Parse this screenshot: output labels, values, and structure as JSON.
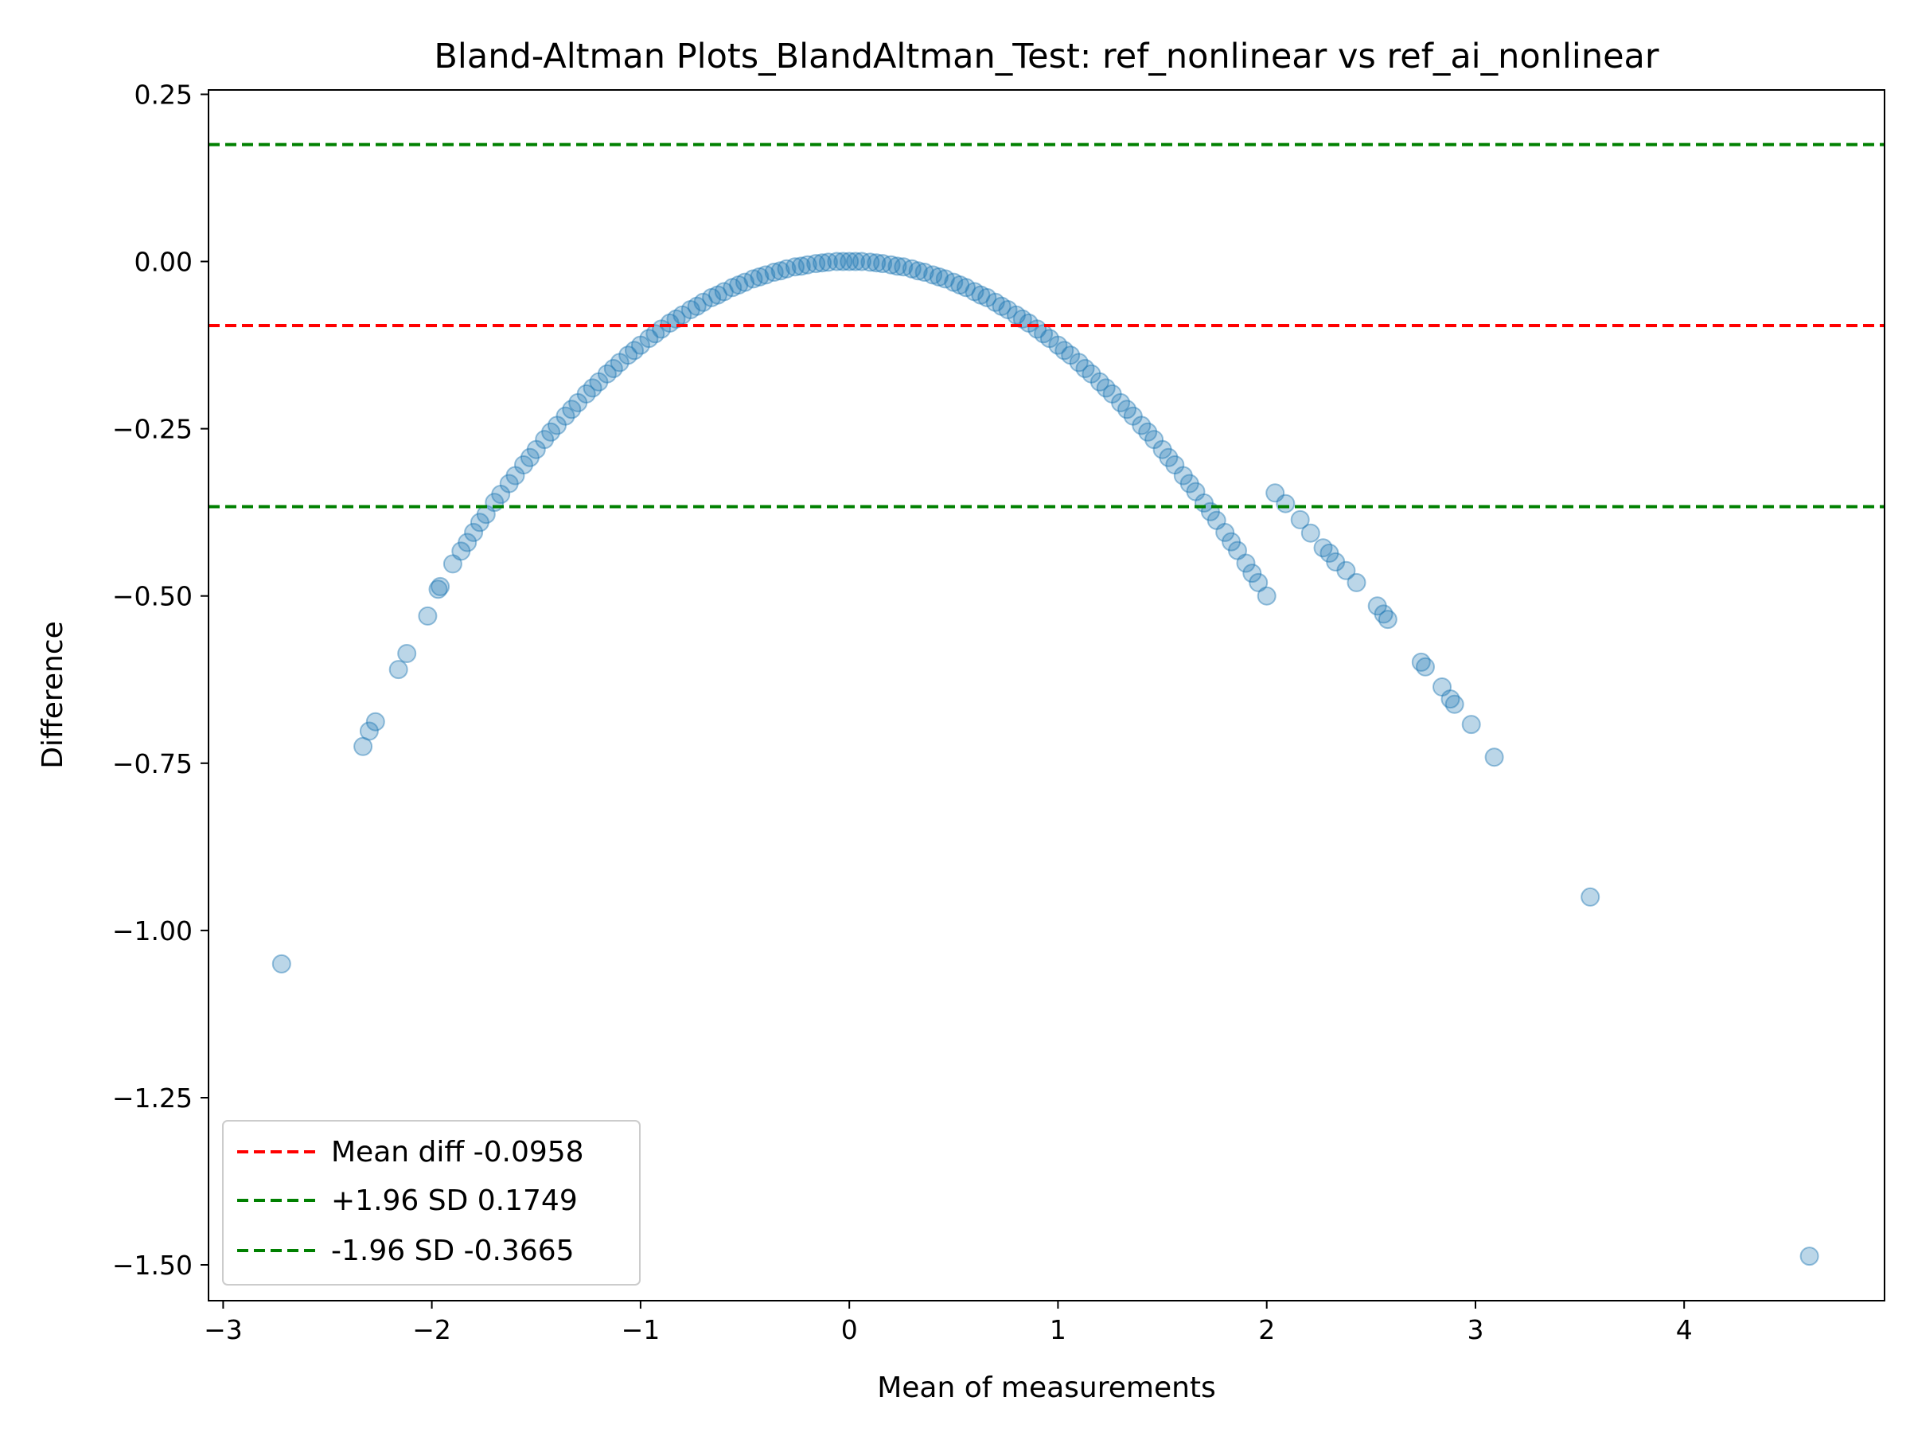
{
  "chart_data": {
    "type": "scatter",
    "title": "Bland-Altman Plots_BlandAltman_Test: ref_nonlinear vs ref_ai_nonlinear",
    "xlabel": "Mean of measurements",
    "ylabel": "Difference",
    "xlim": [
      -3.07,
      4.96
    ],
    "ylim": [
      -1.5535,
      0.2565
    ],
    "xticks": [
      -3,
      -2,
      -1,
      0,
      1,
      2,
      3,
      4
    ],
    "xtick_labels": [
      "−3",
      "−2",
      "−1",
      "0",
      "1",
      "2",
      "3",
      "4"
    ],
    "yticks": [
      0.25,
      0.0,
      -0.25,
      -0.5,
      -0.75,
      -1.0,
      -1.25,
      -1.5
    ],
    "ytick_labels": [
      "0.25",
      "0.00",
      "−0.25",
      "−0.50",
      "−0.75",
      "−1.00",
      "−1.25",
      "−1.50"
    ],
    "grid": false,
    "legend_position": "lower-left",
    "scatter_color": "#1f77b4",
    "scatter_alpha": 0.3,
    "relationship_note": "difference = -x^2 / 8 + noise",
    "series": [
      {
        "marker": "circle",
        "points": [
          [
            -2.72,
            -1.05
          ],
          [
            -2.33,
            -0.725
          ],
          [
            -2.3,
            -0.702
          ],
          [
            -2.27,
            -0.688
          ],
          [
            -2.16,
            -0.61
          ],
          [
            -2.12,
            -0.586
          ],
          [
            -2.02,
            -0.53
          ],
          [
            -1.97,
            -0.49
          ],
          [
            -1.96,
            -0.486
          ],
          [
            -1.9,
            -0.452
          ],
          [
            -1.86,
            -0.433
          ],
          [
            -1.83,
            -0.42
          ],
          [
            -1.8,
            -0.405
          ],
          [
            -1.77,
            -0.39
          ],
          [
            -1.74,
            -0.378
          ],
          [
            -1.7,
            -0.36
          ],
          [
            -1.67,
            -0.348
          ],
          [
            -1.63,
            -0.332
          ],
          [
            -1.6,
            -0.32
          ],
          [
            -1.56,
            -0.304
          ],
          [
            -1.53,
            -0.293
          ],
          [
            -1.5,
            -0.281
          ],
          [
            -1.46,
            -0.266
          ],
          [
            -1.43,
            -0.255
          ],
          [
            -1.4,
            -0.245
          ],
          [
            -1.36,
            -0.231
          ],
          [
            -1.33,
            -0.221
          ],
          [
            -1.3,
            -0.211
          ],
          [
            -1.26,
            -0.198
          ],
          [
            -1.23,
            -0.189
          ],
          [
            -1.2,
            -0.18
          ],
          [
            -1.16,
            -0.168
          ],
          [
            -1.13,
            -0.16
          ],
          [
            -1.1,
            -0.151
          ],
          [
            -1.06,
            -0.14
          ],
          [
            -1.03,
            -0.133
          ],
          [
            -1.0,
            -0.125
          ],
          [
            -0.96,
            -0.115
          ],
          [
            -0.93,
            -0.108
          ],
          [
            -0.9,
            -0.101
          ],
          [
            -0.86,
            -0.092
          ],
          [
            -0.83,
            -0.086
          ],
          [
            -0.8,
            -0.08
          ],
          [
            -0.76,
            -0.072
          ],
          [
            -0.73,
            -0.067
          ],
          [
            -0.7,
            -0.061
          ],
          [
            -0.66,
            -0.054
          ],
          [
            -0.63,
            -0.05
          ],
          [
            -0.6,
            -0.045
          ],
          [
            -0.56,
            -0.039
          ],
          [
            -0.53,
            -0.035
          ],
          [
            -0.5,
            -0.031
          ],
          [
            -0.46,
            -0.026
          ],
          [
            -0.43,
            -0.023
          ],
          [
            -0.4,
            -0.02
          ],
          [
            -0.36,
            -0.016
          ],
          [
            -0.33,
            -0.014
          ],
          [
            -0.3,
            -0.011
          ],
          [
            -0.26,
            -0.008
          ],
          [
            -0.23,
            -0.007
          ],
          [
            -0.2,
            -0.005
          ],
          [
            -0.16,
            -0.003
          ],
          [
            -0.13,
            -0.002
          ],
          [
            -0.1,
            -0.001
          ],
          [
            -0.06,
            0.0
          ],
          [
            -0.03,
            0.0
          ],
          [
            0.0,
            0.0
          ],
          [
            0.03,
            0.0
          ],
          [
            0.06,
            0.0
          ],
          [
            0.1,
            -0.001
          ],
          [
            0.13,
            -0.002
          ],
          [
            0.16,
            -0.003
          ],
          [
            0.2,
            -0.005
          ],
          [
            0.23,
            -0.007
          ],
          [
            0.26,
            -0.008
          ],
          [
            0.3,
            -0.011
          ],
          [
            0.33,
            -0.014
          ],
          [
            0.36,
            -0.016
          ],
          [
            0.4,
            -0.02
          ],
          [
            0.43,
            -0.023
          ],
          [
            0.46,
            -0.026
          ],
          [
            0.5,
            -0.031
          ],
          [
            0.53,
            -0.035
          ],
          [
            0.56,
            -0.039
          ],
          [
            0.6,
            -0.045
          ],
          [
            0.63,
            -0.05
          ],
          [
            0.66,
            -0.054
          ],
          [
            0.7,
            -0.061
          ],
          [
            0.73,
            -0.067
          ],
          [
            0.76,
            -0.072
          ],
          [
            0.8,
            -0.08
          ],
          [
            0.83,
            -0.086
          ],
          [
            0.86,
            -0.092
          ],
          [
            0.9,
            -0.101
          ],
          [
            0.93,
            -0.108
          ],
          [
            0.96,
            -0.115
          ],
          [
            1.0,
            -0.125
          ],
          [
            1.03,
            -0.133
          ],
          [
            1.06,
            -0.14
          ],
          [
            1.1,
            -0.151
          ],
          [
            1.13,
            -0.16
          ],
          [
            1.16,
            -0.168
          ],
          [
            1.2,
            -0.18
          ],
          [
            1.23,
            -0.189
          ],
          [
            1.26,
            -0.198
          ],
          [
            1.3,
            -0.211
          ],
          [
            1.33,
            -0.221
          ],
          [
            1.36,
            -0.231
          ],
          [
            1.4,
            -0.245
          ],
          [
            1.43,
            -0.255
          ],
          [
            1.46,
            -0.266
          ],
          [
            1.5,
            -0.281
          ],
          [
            1.53,
            -0.293
          ],
          [
            1.56,
            -0.304
          ],
          [
            1.6,
            -0.32
          ],
          [
            1.63,
            -0.332
          ],
          [
            1.66,
            -0.344
          ],
          [
            1.7,
            -0.361
          ],
          [
            1.73,
            -0.374
          ],
          [
            1.76,
            -0.387
          ],
          [
            1.8,
            -0.405
          ],
          [
            1.83,
            -0.419
          ],
          [
            1.86,
            -0.432
          ],
          [
            1.9,
            -0.451
          ],
          [
            1.93,
            -0.466
          ],
          [
            1.96,
            -0.48
          ],
          [
            2.0,
            -0.5
          ],
          [
            2.04,
            -0.346
          ],
          [
            2.09,
            -0.362
          ],
          [
            2.16,
            -0.386
          ],
          [
            2.21,
            -0.406
          ],
          [
            2.27,
            -0.428
          ],
          [
            2.3,
            -0.436
          ],
          [
            2.33,
            -0.449
          ],
          [
            2.38,
            -0.462
          ],
          [
            2.43,
            -0.48
          ],
          [
            2.53,
            -0.515
          ],
          [
            2.56,
            -0.527
          ],
          [
            2.58,
            -0.535
          ],
          [
            2.74,
            -0.599
          ],
          [
            2.76,
            -0.606
          ],
          [
            2.84,
            -0.636
          ],
          [
            2.88,
            -0.654
          ],
          [
            2.9,
            -0.662
          ],
          [
            2.98,
            -0.692
          ],
          [
            3.09,
            -0.741
          ],
          [
            3.55,
            -0.95
          ],
          [
            4.6,
            -1.487
          ]
        ]
      }
    ],
    "reference_lines": [
      {
        "label": "Mean diff -0.0958",
        "y": -0.0958,
        "color": "#ff0000",
        "style": "dashed"
      },
      {
        "label": "+1.96 SD 0.1749",
        "y": 0.1749,
        "color": "#008000",
        "style": "dashed"
      },
      {
        "label": "-1.96 SD -0.3665",
        "y": -0.3665,
        "color": "#008000",
        "style": "dashed"
      }
    ],
    "legend": [
      {
        "label": "Mean diff -0.0958",
        "color": "#ff0000"
      },
      {
        "label": "+1.96 SD 0.1749",
        "color": "#008000"
      },
      {
        "label": "-1.96 SD -0.3665",
        "color": "#008000"
      }
    ]
  }
}
